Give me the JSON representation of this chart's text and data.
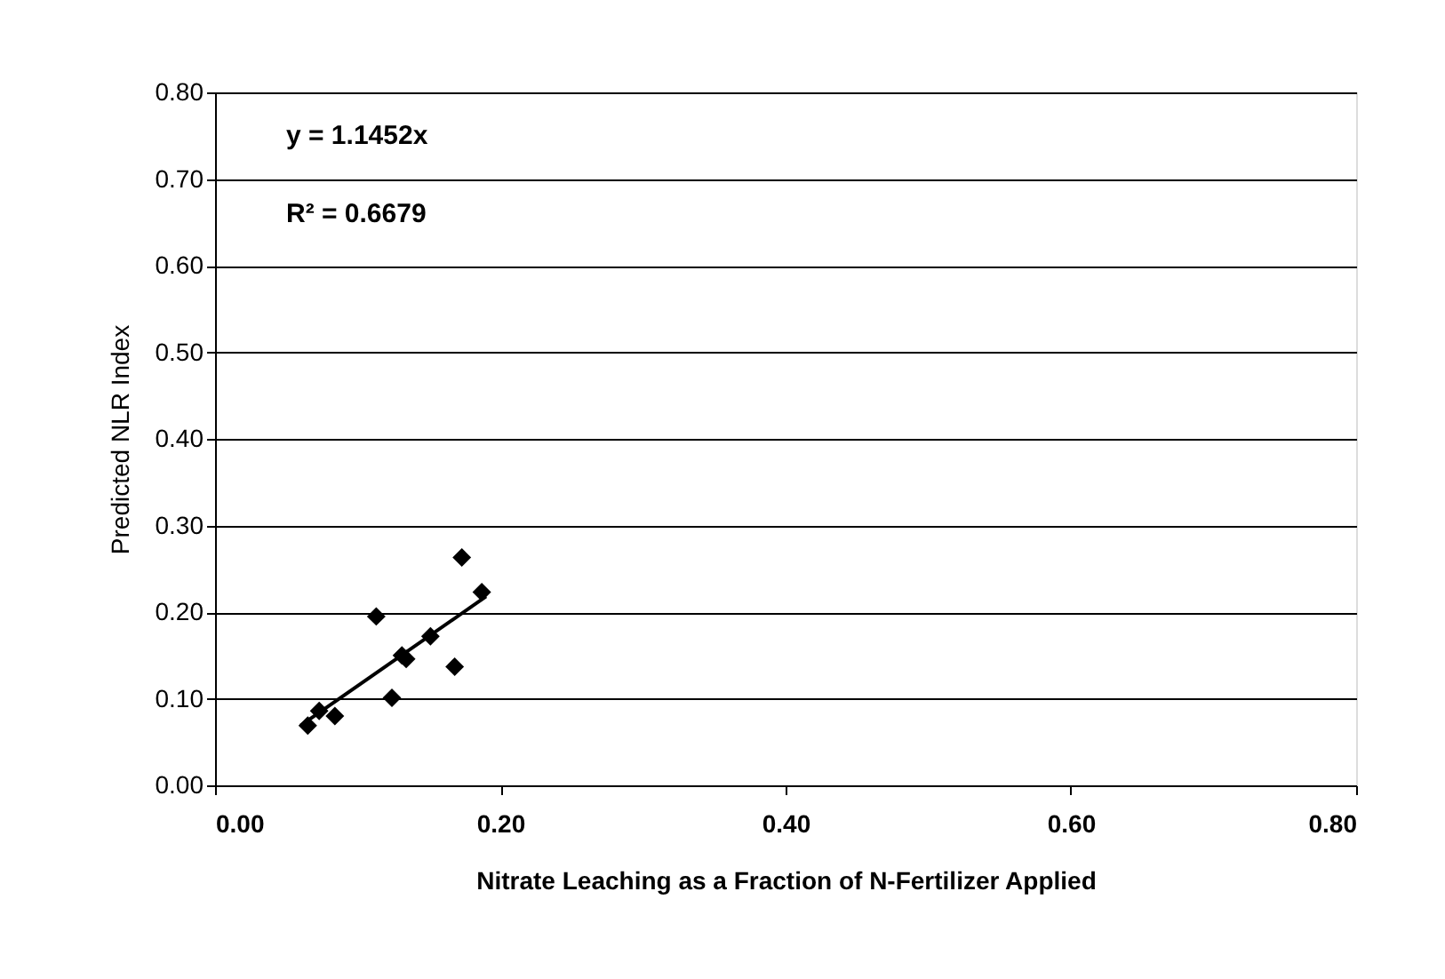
{
  "chart_data": {
    "type": "scatter",
    "xlabel": "Nitrate Leaching as a Fraction of N-Fertilizer Applied",
    "ylabel": "Predicted NLR Index",
    "xlim": [
      0,
      0.8
    ],
    "xticks": [
      {
        "value": 0,
        "label": "0.00"
      },
      {
        "value": 0.2,
        "label": "0.20"
      },
      {
        "value": 0.4,
        "label": "0.40"
      },
      {
        "value": 0.6,
        "label": "0.60"
      },
      {
        "value": 0.8,
        "label": "0.80"
      }
    ],
    "ylim": [
      0,
      0.8
    ],
    "yticks": [
      {
        "value": 0,
        "label": "0.00"
      },
      {
        "value": 0.1,
        "label": "0.10"
      },
      {
        "value": 0.2,
        "label": "0.20"
      },
      {
        "value": 0.3,
        "label": "0.30"
      },
      {
        "value": 0.4,
        "label": "0.40"
      },
      {
        "value": 0.5,
        "label": "0.50"
      },
      {
        "value": 0.6,
        "label": "0.60"
      },
      {
        "value": 0.7,
        "label": "0.70"
      },
      {
        "value": 0.8,
        "label": "0.80"
      }
    ],
    "grid": "y",
    "legend": false,
    "series": [
      {
        "color": "#000000",
        "marker": "diamond",
        "x": [
          0.065,
          0.073,
          0.084,
          0.113,
          0.124,
          0.131,
          0.134,
          0.151,
          0.168,
          0.173,
          0.187
        ],
        "values": [
          0.069,
          0.086,
          0.08,
          0.195,
          0.101,
          0.15,
          0.146,
          0.172,
          0.137,
          0.263,
          0.223
        ]
      },
      {
        "type": "line",
        "color": "#000000",
        "x": [
          0.06,
          0.19
        ],
        "values": [
          0.069,
          0.218
        ]
      }
    ],
    "annotations": [
      "y = 1.1452x",
      "R² = 0.6679"
    ]
  }
}
